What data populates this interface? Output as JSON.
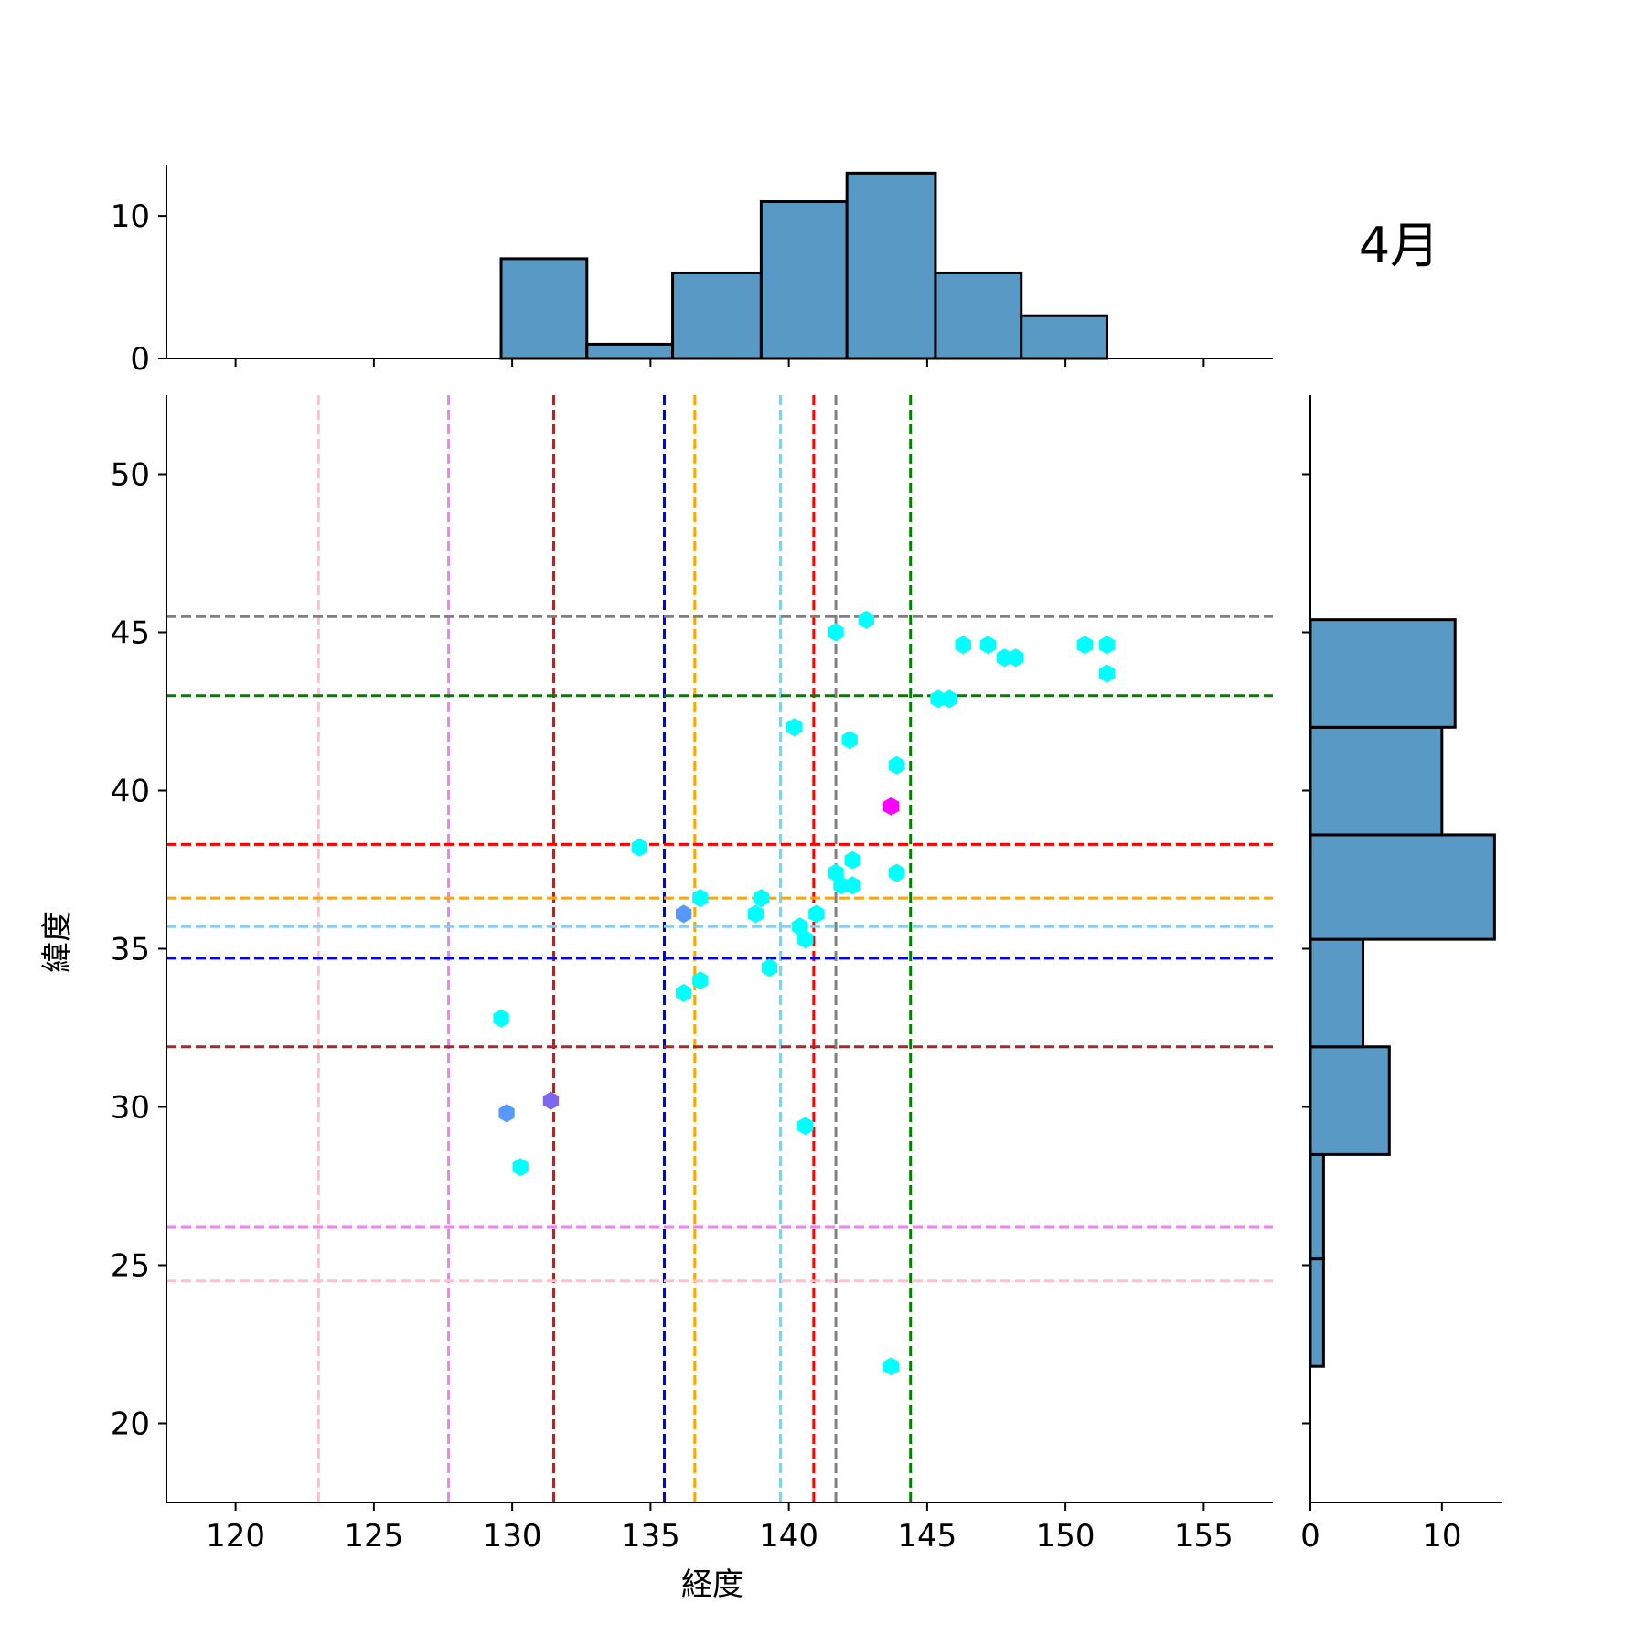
{
  "chart_data": {
    "type": "scatter",
    "month_label": "4月",
    "xlabel": "経度",
    "ylabel": "緯度",
    "xlim": [
      117.5,
      157.5
    ],
    "ylim": [
      17.5,
      52.5
    ],
    "xticks": [
      120,
      125,
      130,
      135,
      140,
      145,
      150,
      155
    ],
    "yticks": [
      20,
      25,
      30,
      35,
      40,
      45,
      50
    ],
    "top_hist": {
      "ylim": [
        0,
        13.6
      ],
      "yticks": [
        0,
        10
      ],
      "bins": [
        {
          "x0": 129.6,
          "x1": 132.7,
          "count": 7
        },
        {
          "x0": 132.7,
          "x1": 135.8,
          "count": 1
        },
        {
          "x0": 135.8,
          "x1": 139.0,
          "count": 6
        },
        {
          "x0": 139.0,
          "x1": 142.1,
          "count": 11
        },
        {
          "x0": 142.1,
          "x1": 145.3,
          "count": 13
        },
        {
          "x0": 145.3,
          "x1": 148.4,
          "count": 6
        },
        {
          "x0": 148.4,
          "x1": 151.5,
          "count": 3
        }
      ]
    },
    "right_hist": {
      "xlim": [
        0,
        14.6
      ],
      "xticks": [
        0,
        10
      ],
      "bins": [
        {
          "y0": 21.8,
          "y1": 25.2,
          "count": 1
        },
        {
          "y0": 25.2,
          "y1": 28.5,
          "count": 1
        },
        {
          "y0": 28.5,
          "y1": 31.9,
          "count": 6
        },
        {
          "y0": 31.9,
          "y1": 35.3,
          "count": 4
        },
        {
          "y0": 35.3,
          "y1": 38.6,
          "count": 14
        },
        {
          "y0": 38.6,
          "y1": 42.0,
          "count": 10
        },
        {
          "y0": 42.0,
          "y1": 45.4,
          "count": 11
        }
      ]
    },
    "hist_color": "#5899c5",
    "vlines": [
      {
        "x": 123.0,
        "color": "#ffc0cb"
      },
      {
        "x": 127.7,
        "color": "#ee82ee"
      },
      {
        "x": 131.5,
        "color": "#a52a2a"
      },
      {
        "x": 135.5,
        "color": "#0000ff"
      },
      {
        "x": 136.6,
        "color": "#ffa500"
      },
      {
        "x": 139.7,
        "color": "#87ceeb"
      },
      {
        "x": 140.9,
        "color": "#ff0000"
      },
      {
        "x": 141.7,
        "color": "#808080"
      },
      {
        "x": 144.4,
        "color": "#008000"
      }
    ],
    "hlines": [
      {
        "y": 45.5,
        "color": "#808080"
      },
      {
        "y": 43.0,
        "color": "#008000"
      },
      {
        "y": 38.3,
        "color": "#ff0000"
      },
      {
        "y": 36.6,
        "color": "#ffa500"
      },
      {
        "y": 35.7,
        "color": "#87ceeb"
      },
      {
        "y": 34.7,
        "color": "#0000ff"
      },
      {
        "y": 31.9,
        "color": "#a52a2a"
      },
      {
        "y": 26.2,
        "color": "#ee82ee"
      },
      {
        "y": 24.5,
        "color": "#ffc0cb"
      }
    ],
    "points": [
      {
        "x": 142.8,
        "y": 45.4,
        "color": "#00ffff"
      },
      {
        "x": 141.7,
        "y": 45.0,
        "color": "#00ffff"
      },
      {
        "x": 146.3,
        "y": 44.6,
        "color": "#00ffff"
      },
      {
        "x": 147.2,
        "y": 44.6,
        "color": "#00ffff"
      },
      {
        "x": 147.8,
        "y": 44.2,
        "color": "#00ffff"
      },
      {
        "x": 148.2,
        "y": 44.2,
        "color": "#00ffff"
      },
      {
        "x": 150.7,
        "y": 44.6,
        "color": "#00ffff"
      },
      {
        "x": 151.5,
        "y": 44.6,
        "color": "#00ffff"
      },
      {
        "x": 151.5,
        "y": 43.7,
        "color": "#00ffff"
      },
      {
        "x": 145.4,
        "y": 42.9,
        "color": "#00ffff"
      },
      {
        "x": 145.8,
        "y": 42.9,
        "color": "#00ffff"
      },
      {
        "x": 140.2,
        "y": 42.0,
        "color": "#00ffff"
      },
      {
        "x": 142.2,
        "y": 41.6,
        "color": "#00ffff"
      },
      {
        "x": 143.9,
        "y": 40.8,
        "color": "#00ffff"
      },
      {
        "x": 143.7,
        "y": 39.5,
        "color": "#ff00ff"
      },
      {
        "x": 134.6,
        "y": 38.2,
        "color": "#00ffff"
      },
      {
        "x": 142.3,
        "y": 37.8,
        "color": "#00ffff"
      },
      {
        "x": 141.7,
        "y": 37.4,
        "color": "#00ffff"
      },
      {
        "x": 143.9,
        "y": 37.4,
        "color": "#00ffff"
      },
      {
        "x": 141.9,
        "y": 37.0,
        "color": "#00ffff"
      },
      {
        "x": 142.3,
        "y": 37.0,
        "color": "#00ffff"
      },
      {
        "x": 136.8,
        "y": 36.6,
        "color": "#00ffff"
      },
      {
        "x": 139.0,
        "y": 36.6,
        "color": "#00ffff"
      },
      {
        "x": 136.2,
        "y": 36.1,
        "color": "#5599ff"
      },
      {
        "x": 138.8,
        "y": 36.1,
        "color": "#00ffff"
      },
      {
        "x": 141.0,
        "y": 36.1,
        "color": "#00ffff"
      },
      {
        "x": 140.4,
        "y": 35.7,
        "color": "#00ffff"
      },
      {
        "x": 140.6,
        "y": 35.3,
        "color": "#00ffff"
      },
      {
        "x": 139.3,
        "y": 34.4,
        "color": "#00ffff"
      },
      {
        "x": 136.8,
        "y": 34.0,
        "color": "#00ffff"
      },
      {
        "x": 136.2,
        "y": 33.6,
        "color": "#00ffff"
      },
      {
        "x": 129.6,
        "y": 32.8,
        "color": "#00ffff"
      },
      {
        "x": 131.4,
        "y": 30.2,
        "color": "#7b68ee"
      },
      {
        "x": 129.8,
        "y": 29.8,
        "color": "#5599ff"
      },
      {
        "x": 140.6,
        "y": 29.4,
        "color": "#00ffff"
      },
      {
        "x": 130.3,
        "y": 28.1,
        "color": "#00ffff"
      },
      {
        "x": 143.7,
        "y": 21.8,
        "color": "#00ffff"
      }
    ]
  }
}
